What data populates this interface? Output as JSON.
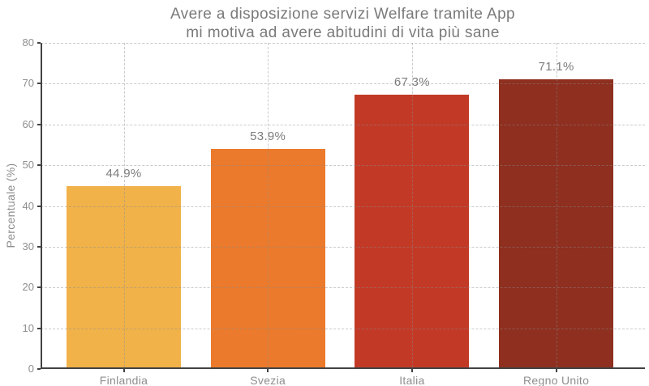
{
  "chart_data": {
    "type": "bar",
    "title_lines": [
      "Avere a disposizione servizi Welfare tramite App",
      "mi motiva ad avere abitudini di vita più sane"
    ],
    "ylabel": "Percentuale (%)",
    "categories": [
      "Finlandia",
      "Svezia",
      "Italia",
      "Regno Unito"
    ],
    "values": [
      44.9,
      53.9,
      67.3,
      71.1
    ],
    "value_labels": [
      "44.9%",
      "53.9%",
      "67.3%",
      "71.1%"
    ],
    "bar_colors": [
      "#F1B24A",
      "#EB7A2C",
      "#C23A26",
      "#8E2F1F"
    ],
    "ylim": [
      0,
      80
    ],
    "yticks": [
      0,
      10,
      20,
      30,
      40,
      50,
      60,
      70,
      80
    ],
    "grid": {
      "style": "dashed",
      "color": "rgba(140,140,140,0.45)",
      "horizontal": true,
      "vertical": true
    },
    "legend": "none",
    "colors": {
      "title_text": "#7a7a7a",
      "tick_text": "#8e8e8e",
      "value_label_text": "#7d7d7d",
      "axis_spine": "#424242",
      "background": "#ffffff"
    }
  }
}
